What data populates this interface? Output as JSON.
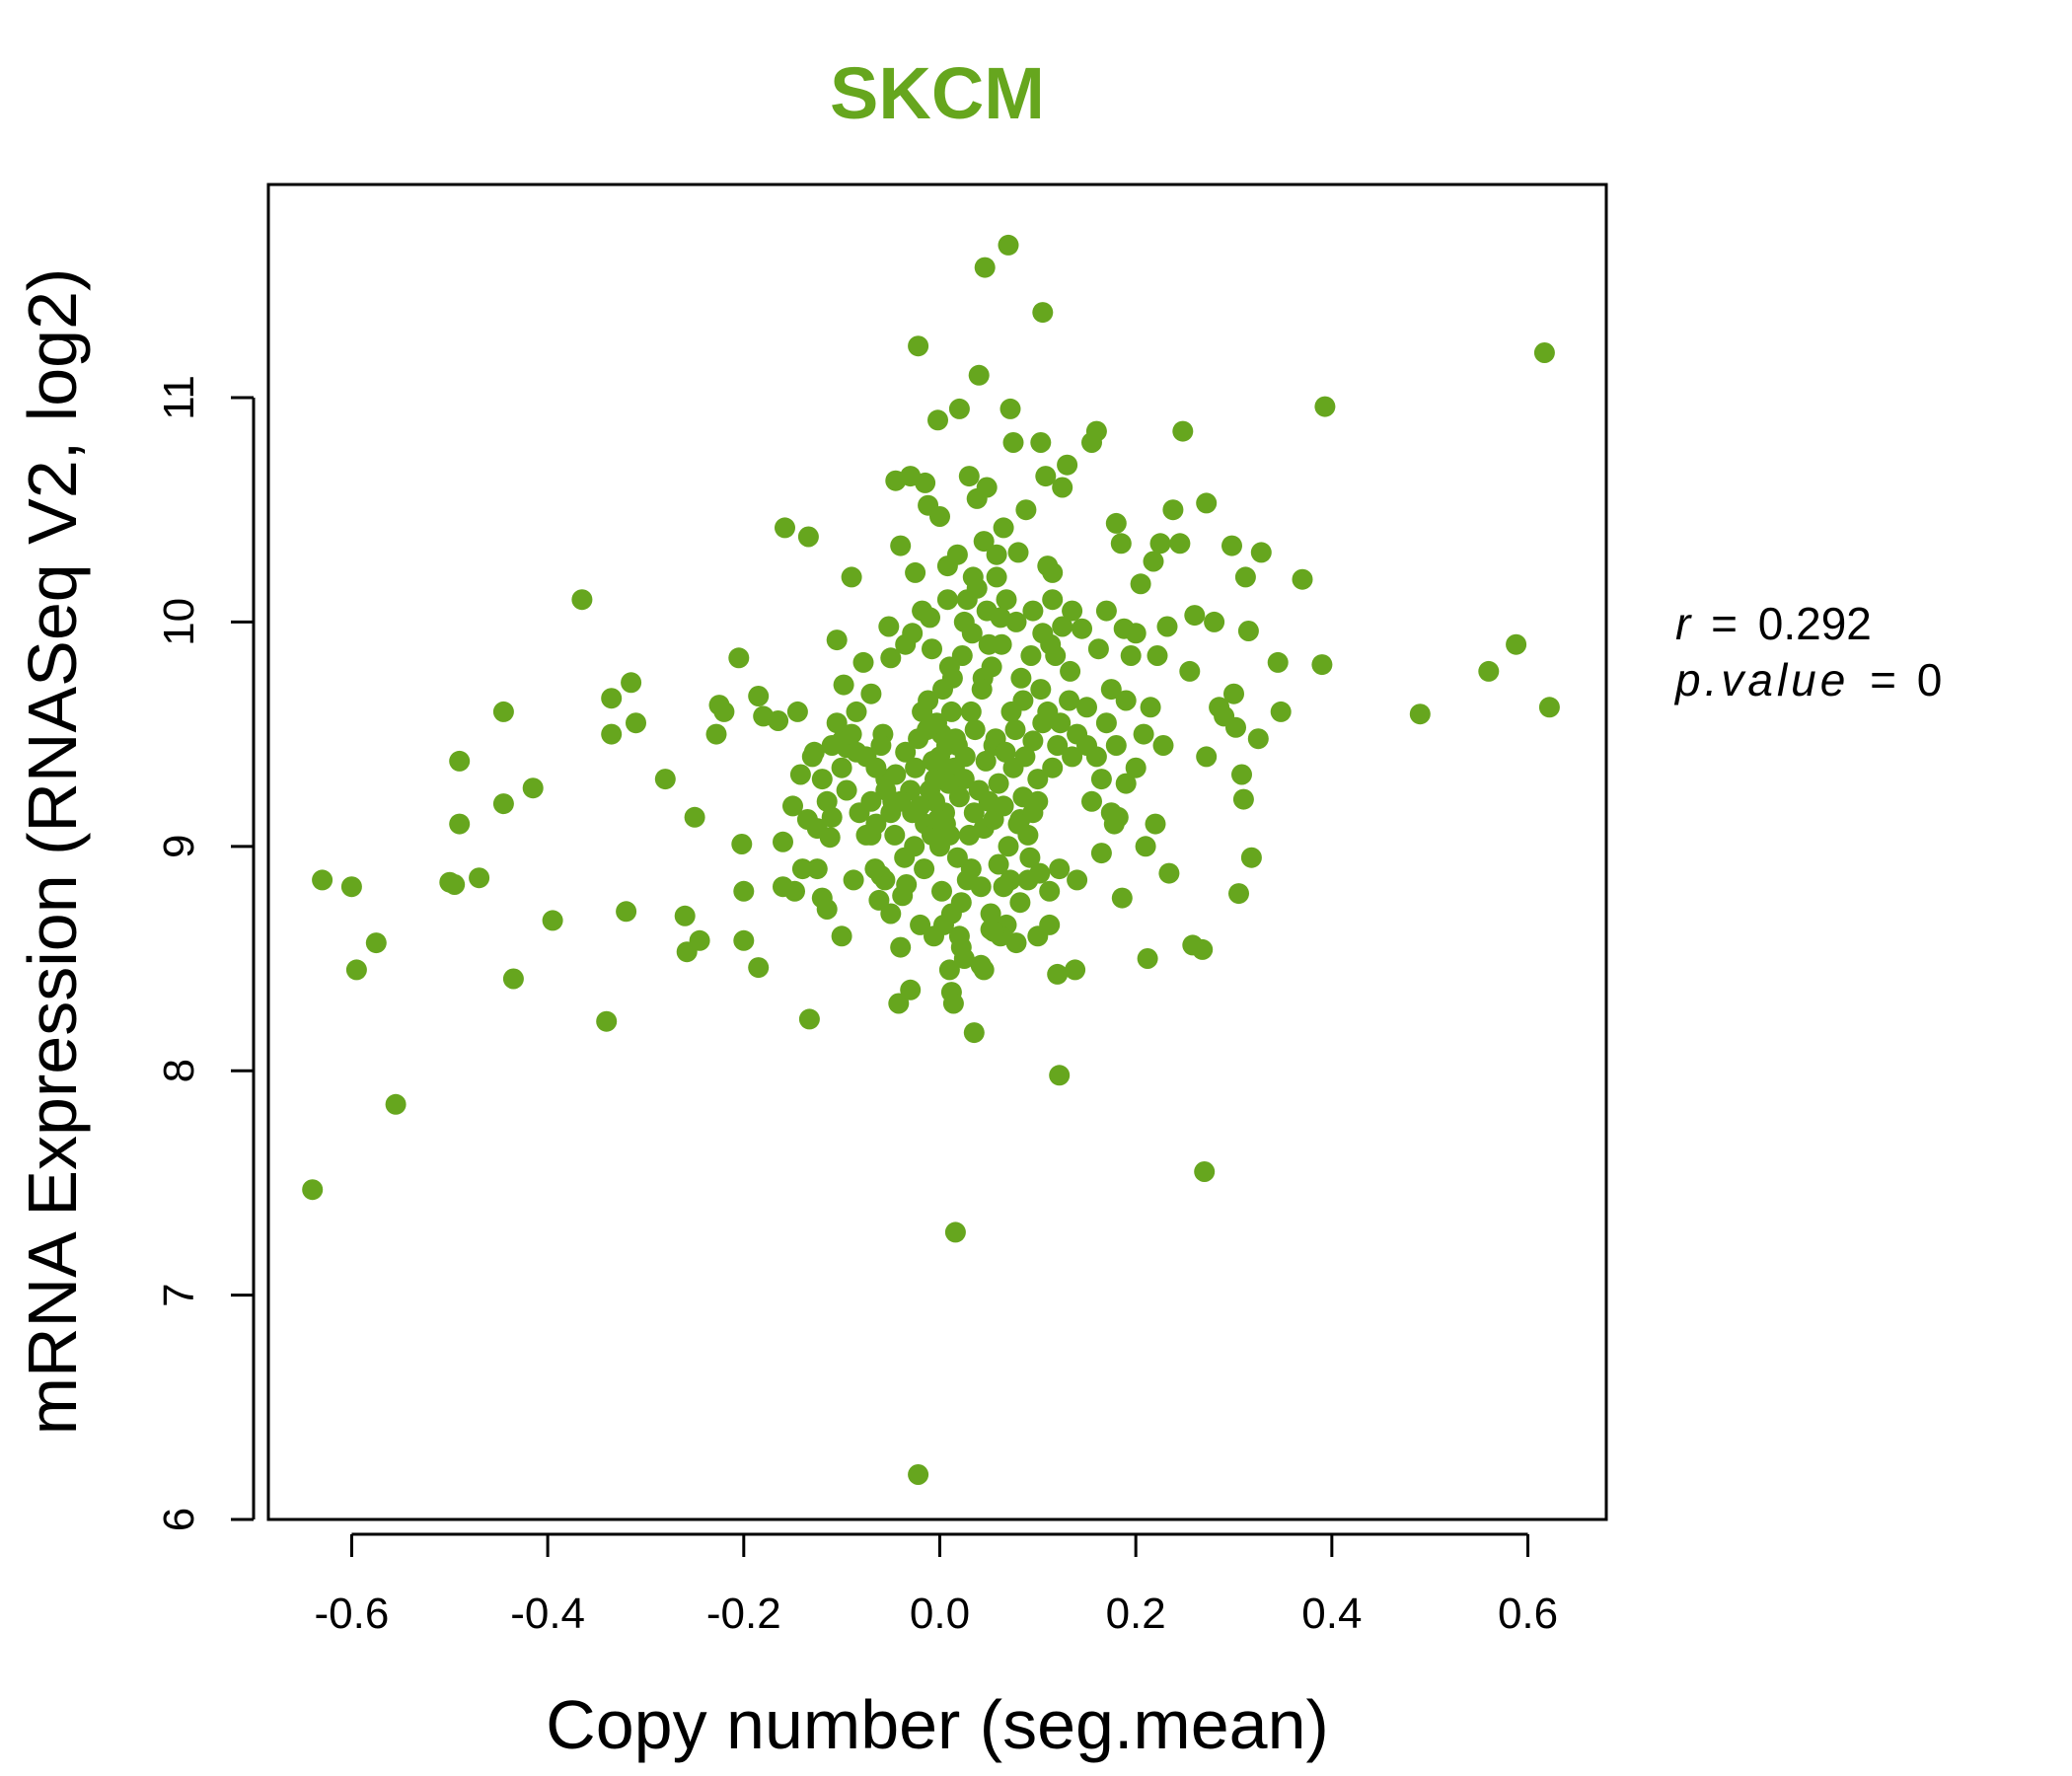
{
  "chart_data": {
    "type": "scatter",
    "title": "SKCM",
    "xlabel": "Copy number (seg.mean)",
    "ylabel": "mRNA Expression (RNASeq V2, log2)",
    "xlim": [
      -0.685,
      0.68
    ],
    "ylim": [
      6.0,
      11.95
    ],
    "x_ticks": [
      -0.6,
      -0.4,
      -0.2,
      0.0,
      0.2,
      0.4,
      0.6
    ],
    "x_tick_labels": [
      "-0.6",
      "-0.4",
      "-0.2",
      "0.0",
      "0.2",
      "0.4",
      "0.6"
    ],
    "y_ticks": [
      6,
      7,
      8,
      9,
      10,
      11
    ],
    "y_tick_labels": [
      "6",
      "7",
      "8",
      "9",
      "10",
      "11"
    ],
    "point_color": "#66a61e",
    "annotation": {
      "r_label": "r",
      "r_value": "0.292",
      "p_label": "p.value",
      "p_value": "0",
      "equals": "="
    },
    "points": [
      [
        -0.64,
        7.47
      ],
      [
        -0.63,
        8.85
      ],
      [
        -0.6,
        8.82
      ],
      [
        -0.595,
        8.45
      ],
      [
        -0.575,
        8.57
      ],
      [
        -0.555,
        7.85
      ],
      [
        -0.5,
        8.84
      ],
      [
        -0.495,
        8.83
      ],
      [
        -0.49,
        9.38
      ],
      [
        -0.49,
        9.1
      ],
      [
        -0.47,
        8.86
      ],
      [
        -0.445,
        9.6
      ],
      [
        -0.445,
        9.19
      ],
      [
        -0.435,
        8.41
      ],
      [
        -0.415,
        9.26
      ],
      [
        -0.395,
        8.67
      ],
      [
        -0.365,
        10.1
      ],
      [
        -0.34,
        8.22
      ],
      [
        -0.335,
        9.66
      ],
      [
        -0.335,
        9.5
      ],
      [
        -0.32,
        8.71
      ],
      [
        -0.315,
        9.73
      ],
      [
        -0.31,
        9.55
      ],
      [
        -0.28,
        9.3
      ],
      [
        -0.26,
        8.69
      ],
      [
        -0.258,
        8.53
      ],
      [
        -0.25,
        9.13
      ],
      [
        -0.245,
        8.58
      ],
      [
        -0.228,
        9.5
      ],
      [
        -0.225,
        9.63
      ],
      [
        -0.22,
        9.6
      ],
      [
        -0.205,
        9.84
      ],
      [
        -0.202,
        9.01
      ],
      [
        -0.2,
        8.8
      ],
      [
        -0.2,
        8.58
      ],
      [
        -0.185,
        9.67
      ],
      [
        -0.185,
        8.46
      ],
      [
        -0.18,
        9.58
      ],
      [
        -0.165,
        9.56
      ],
      [
        -0.16,
        9.02
      ],
      [
        -0.16,
        8.82
      ],
      [
        -0.158,
        10.42
      ],
      [
        -0.15,
        9.18
      ],
      [
        -0.148,
        8.8
      ],
      [
        -0.145,
        9.6
      ],
      [
        -0.142,
        9.32
      ],
      [
        -0.14,
        8.9
      ],
      [
        -0.135,
        9.12
      ],
      [
        -0.134,
        10.38
      ],
      [
        -0.133,
        8.23
      ],
      [
        -0.128,
        9.42
      ],
      [
        -0.125,
        8.9
      ],
      [
        -0.12,
        8.77
      ],
      [
        -0.115,
        8.72
      ],
      [
        -0.112,
        9.04
      ],
      [
        -0.11,
        9.13
      ],
      [
        -0.105,
        9.92
      ],
      [
        -0.1,
        9.47
      ],
      [
        -0.1,
        8.6
      ],
      [
        -0.098,
        9.72
      ],
      [
        -0.095,
        9.44
      ],
      [
        -0.09,
        10.2
      ],
      [
        -0.088,
        8.85
      ],
      [
        -0.085,
        9.42
      ],
      [
        -0.082,
        9.15
      ],
      [
        -0.078,
        9.82
      ],
      [
        -0.075,
        9.4
      ],
      [
        -0.07,
        9.68
      ],
      [
        -0.07,
        9.05
      ],
      [
        -0.065,
        9.1
      ],
      [
        -0.062,
        8.76
      ],
      [
        -0.06,
        8.87
      ],
      [
        -0.058,
        9.5
      ],
      [
        -0.055,
        9.3
      ],
      [
        -0.052,
        9.98
      ],
      [
        -0.05,
        9.84
      ],
      [
        -0.048,
        9.2
      ],
      [
        -0.045,
        10.63
      ],
      [
        -0.042,
        8.3
      ],
      [
        -0.04,
        10.34
      ],
      [
        -0.038,
        8.78
      ],
      [
        -0.035,
        9.9
      ],
      [
        -0.034,
        8.83
      ],
      [
        -0.03,
        10.65
      ],
      [
        -0.03,
        8.36
      ],
      [
        -0.028,
        9.15
      ],
      [
        -0.025,
        10.22
      ],
      [
        -0.022,
        11.23
      ],
      [
        -0.022,
        6.2
      ],
      [
        -0.018,
        9.6
      ],
      [
        -0.015,
        10.62
      ],
      [
        -0.012,
        10.52
      ],
      [
        -0.01,
        10.02
      ],
      [
        -0.008,
        9.88
      ],
      [
        -0.005,
        9.3
      ],
      [
        -0.002,
        10.9
      ],
      [
        0.0,
        10.47
      ],
      [
        0.002,
        9.5
      ],
      [
        0.004,
        8.65
      ],
      [
        0.006,
        9.1
      ],
      [
        0.008,
        10.1
      ],
      [
        0.01,
        9.8
      ],
      [
        0.012,
        8.35
      ],
      [
        0.014,
        8.3
      ],
      [
        0.016,
        7.28
      ],
      [
        0.018,
        9.45
      ],
      [
        0.02,
        10.95
      ],
      [
        0.022,
        8.55
      ],
      [
        0.025,
        10.0
      ],
      [
        0.028,
        8.85
      ],
      [
        0.03,
        10.65
      ],
      [
        0.032,
        9.6
      ],
      [
        0.034,
        10.2
      ],
      [
        0.035,
        8.17
      ],
      [
        0.038,
        10.55
      ],
      [
        0.04,
        11.1
      ],
      [
        0.042,
        8.47
      ],
      [
        0.044,
        9.75
      ],
      [
        0.045,
        10.36
      ],
      [
        0.046,
        11.58
      ],
      [
        0.048,
        10.6
      ],
      [
        0.05,
        9.9
      ],
      [
        0.052,
        8.63
      ],
      [
        0.055,
        9.45
      ],
      [
        0.058,
        10.3
      ],
      [
        0.06,
        8.92
      ],
      [
        0.062,
        10.02
      ],
      [
        0.065,
        10.42
      ],
      [
        0.068,
        8.65
      ],
      [
        0.07,
        11.68
      ],
      [
        0.072,
        10.95
      ],
      [
        0.075,
        10.8
      ],
      [
        0.078,
        8.57
      ],
      [
        0.08,
        10.31
      ],
      [
        0.082,
        9.12
      ],
      [
        0.085,
        9.65
      ],
      [
        0.088,
        10.5
      ],
      [
        0.09,
        8.85
      ],
      [
        0.095,
        9.47
      ],
      [
        0.1,
        9.3
      ],
      [
        0.103,
        10.8
      ],
      [
        0.105,
        11.38
      ],
      [
        0.108,
        10.65
      ],
      [
        0.11,
        10.25
      ],
      [
        0.112,
        8.8
      ],
      [
        0.115,
        10.22
      ],
      [
        0.118,
        9.85
      ],
      [
        0.12,
        8.43
      ],
      [
        0.122,
        7.98
      ],
      [
        0.125,
        10.6
      ],
      [
        0.13,
        10.7
      ],
      [
        0.132,
        9.65
      ],
      [
        0.135,
        9.4
      ],
      [
        0.138,
        8.45
      ],
      [
        0.14,
        8.85
      ],
      [
        0.145,
        9.97
      ],
      [
        0.15,
        9.45
      ],
      [
        0.155,
        10.8
      ],
      [
        0.16,
        10.85
      ],
      [
        0.162,
        9.88
      ],
      [
        0.165,
        8.97
      ],
      [
        0.17,
        10.05
      ],
      [
        0.175,
        9.7
      ],
      [
        0.178,
        9.1
      ],
      [
        0.18,
        10.44
      ],
      [
        0.182,
        9.13
      ],
      [
        0.185,
        10.35
      ],
      [
        0.186,
        8.77
      ],
      [
        0.188,
        9.97
      ],
      [
        0.19,
        9.28
      ],
      [
        0.195,
        9.85
      ],
      [
        0.2,
        9.95
      ],
      [
        0.205,
        10.17
      ],
      [
        0.208,
        9.5
      ],
      [
        0.21,
        9.0
      ],
      [
        0.212,
        8.5
      ],
      [
        0.215,
        9.62
      ],
      [
        0.218,
        10.27
      ],
      [
        0.22,
        9.1
      ],
      [
        0.222,
        9.85
      ],
      [
        0.225,
        10.35
      ],
      [
        0.228,
        9.45
      ],
      [
        0.232,
        9.98
      ],
      [
        0.234,
        8.88
      ],
      [
        0.238,
        10.5
      ],
      [
        0.245,
        10.35
      ],
      [
        0.248,
        10.85
      ],
      [
        0.255,
        9.78
      ],
      [
        0.258,
        8.56
      ],
      [
        0.26,
        10.03
      ],
      [
        0.268,
        8.54
      ],
      [
        0.27,
        7.55
      ],
      [
        0.272,
        10.53
      ],
      [
        0.272,
        9.4
      ],
      [
        0.28,
        10.0
      ],
      [
        0.285,
        9.62
      ],
      [
        0.29,
        9.58
      ],
      [
        0.298,
        10.34
      ],
      [
        0.3,
        9.68
      ],
      [
        0.302,
        9.53
      ],
      [
        0.305,
        8.79
      ],
      [
        0.308,
        9.32
      ],
      [
        0.31,
        9.21
      ],
      [
        0.312,
        10.2
      ],
      [
        0.315,
        9.96
      ],
      [
        0.318,
        8.95
      ],
      [
        0.325,
        9.48
      ],
      [
        0.328,
        10.31
      ],
      [
        0.345,
        9.82
      ],
      [
        0.348,
        9.6
      ],
      [
        0.37,
        10.19
      ],
      [
        0.39,
        9.81
      ],
      [
        0.393,
        10.96
      ],
      [
        0.49,
        9.59
      ],
      [
        0.56,
        9.78
      ],
      [
        0.588,
        9.9
      ],
      [
        0.617,
        11.2
      ],
      [
        0.622,
        9.62
      ],
      [
        -0.005,
        9.2
      ],
      [
        0.005,
        9.15
      ],
      [
        0.01,
        9.05
      ],
      [
        -0.01,
        9.25
      ],
      [
        0.015,
        9.35
      ],
      [
        -0.015,
        9.1
      ],
      [
        0.02,
        9.22
      ],
      [
        -0.02,
        9.18
      ],
      [
        0.025,
        9.3
      ],
      [
        0.0,
        9.4
      ],
      [
        -0.003,
        9.55
      ],
      [
        0.007,
        9.45
      ],
      [
        0.012,
        9.6
      ],
      [
        -0.008,
        9.05
      ],
      [
        0.018,
        8.95
      ],
      [
        0.03,
        9.05
      ],
      [
        -0.025,
        9.35
      ],
      [
        0.035,
        9.15
      ],
      [
        0.04,
        9.25
      ],
      [
        0.045,
        9.08
      ],
      [
        0.05,
        9.2
      ],
      [
        0.055,
        9.12
      ],
      [
        0.06,
        9.28
      ],
      [
        0.065,
        9.18
      ],
      [
        0.07,
        9.0
      ],
      [
        0.075,
        9.35
      ],
      [
        0.08,
        9.1
      ],
      [
        0.085,
        9.22
      ],
      [
        0.09,
        9.05
      ],
      [
        0.095,
        9.15
      ],
      [
        0.1,
        9.2
      ],
      [
        0.105,
        9.55
      ],
      [
        0.11,
        9.6
      ],
      [
        0.115,
        9.35
      ],
      [
        0.12,
        9.45
      ],
      [
        -0.03,
        9.25
      ],
      [
        -0.035,
        9.42
      ],
      [
        -0.04,
        9.2
      ],
      [
        -0.045,
        9.32
      ],
      [
        -0.05,
        9.15
      ],
      [
        -0.055,
        9.25
      ],
      [
        -0.06,
        9.45
      ],
      [
        -0.065,
        9.35
      ],
      [
        -0.07,
        9.2
      ],
      [
        -0.075,
        9.05
      ],
      [
        0.003,
        9.7
      ],
      [
        0.013,
        9.75
      ],
      [
        -0.012,
        9.65
      ],
      [
        0.023,
        9.85
      ],
      [
        0.033,
        9.95
      ],
      [
        0.043,
        9.7
      ],
      [
        0.053,
        9.8
      ],
      [
        0.063,
        9.9
      ],
      [
        0.073,
        9.6
      ],
      [
        0.083,
        9.75
      ],
      [
        0.093,
        9.85
      ],
      [
        0.103,
        9.7
      ],
      [
        0.113,
        9.9
      ],
      [
        0.123,
        9.55
      ],
      [
        0.133,
        9.78
      ],
      [
        0.002,
        8.8
      ],
      [
        0.012,
        8.7
      ],
      [
        -0.006,
        8.6
      ],
      [
        0.022,
        8.75
      ],
      [
        0.032,
        8.9
      ],
      [
        0.042,
        8.82
      ],
      [
        0.052,
        8.7
      ],
      [
        0.062,
        8.6
      ],
      [
        0.072,
        8.85
      ],
      [
        0.082,
        8.75
      ],
      [
        0.092,
        8.95
      ],
      [
        0.102,
        8.88
      ],
      [
        0.112,
        8.65
      ],
      [
        0.122,
        8.9
      ],
      [
        -0.016,
        8.9
      ],
      [
        -0.026,
        9.0
      ],
      [
        -0.036,
        8.95
      ],
      [
        -0.046,
        9.05
      ],
      [
        -0.056,
        8.85
      ],
      [
        -0.066,
        8.9
      ],
      [
        0.14,
        9.5
      ],
      [
        0.15,
        9.62
      ],
      [
        0.16,
        9.4
      ],
      [
        0.17,
        9.55
      ],
      [
        0.18,
        9.45
      ],
      [
        0.19,
        9.65
      ],
      [
        0.2,
        9.35
      ],
      [
        0.155,
        9.2
      ],
      [
        0.165,
        9.3
      ],
      [
        0.175,
        9.15
      ],
      [
        -0.09,
        9.5
      ],
      [
        -0.1,
        9.35
      ],
      [
        -0.11,
        9.45
      ],
      [
        -0.12,
        9.3
      ],
      [
        -0.13,
        9.4
      ],
      [
        -0.085,
        9.6
      ],
      [
        -0.095,
        9.25
      ],
      [
        -0.105,
        9.55
      ],
      [
        -0.115,
        9.2
      ],
      [
        -0.125,
        9.08
      ],
      [
        0.028,
        10.1
      ],
      [
        0.038,
        10.15
      ],
      [
        0.048,
        10.05
      ],
      [
        0.058,
        10.2
      ],
      [
        0.068,
        10.1
      ],
      [
        0.078,
        10.0
      ],
      [
        -0.018,
        10.05
      ],
      [
        -0.028,
        9.95
      ],
      [
        0.008,
        10.25
      ],
      [
        0.018,
        10.3
      ],
      [
        0.095,
        10.05
      ],
      [
        0.105,
        9.95
      ],
      [
        0.115,
        10.1
      ],
      [
        0.125,
        9.98
      ],
      [
        0.135,
        10.05
      ],
      [
        0.0,
        9.0
      ],
      [
        0.004,
        9.33
      ],
      [
        -0.002,
        9.12
      ],
      [
        0.009,
        9.28
      ],
      [
        -0.007,
        9.38
      ],
      [
        0.016,
        9.48
      ],
      [
        -0.013,
        9.52
      ],
      [
        0.026,
        9.4
      ],
      [
        -0.022,
        9.48
      ],
      [
        0.036,
        9.52
      ],
      [
        0.047,
        9.38
      ],
      [
        0.057,
        9.48
      ],
      [
        0.067,
        9.42
      ],
      [
        0.077,
        9.52
      ],
      [
        0.087,
        9.4
      ],
      [
        0.045,
        8.45
      ],
      [
        0.025,
        8.5
      ],
      [
        0.055,
        8.62
      ],
      [
        0.065,
        8.82
      ],
      [
        0.1,
        8.6
      ],
      [
        -0.05,
        8.7
      ],
      [
        -0.04,
        8.55
      ],
      [
        0.01,
        8.45
      ],
      [
        0.02,
        8.6
      ],
      [
        -0.02,
        8.65
      ]
    ]
  }
}
